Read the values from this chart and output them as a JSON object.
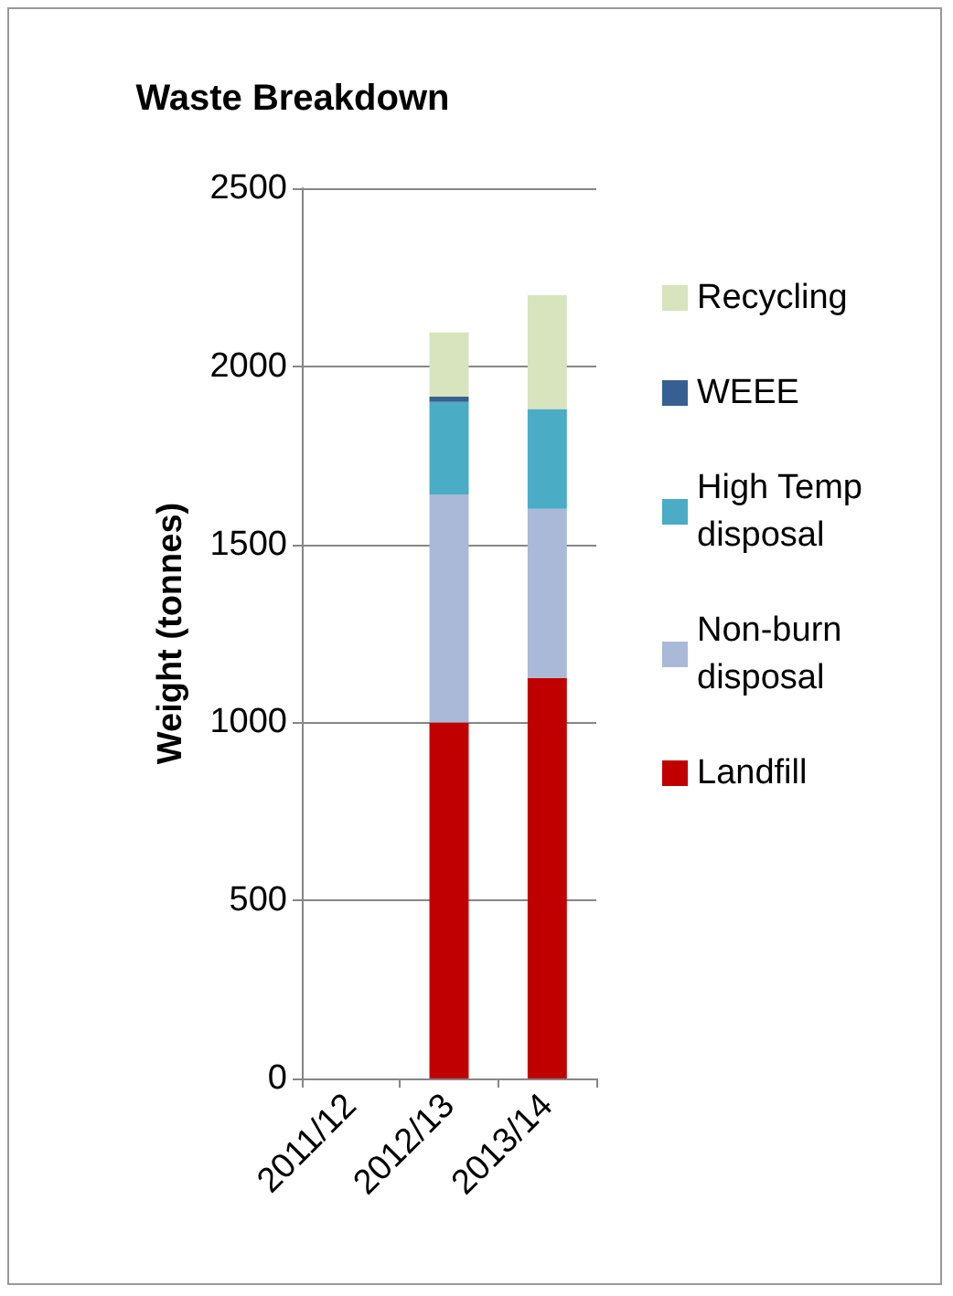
{
  "chart_data": {
    "type": "bar",
    "title": "Waste Breakdown",
    "ylabel": "Weight (tonnes)",
    "categories": [
      "2011/12",
      "2012/13",
      "2013/14"
    ],
    "stacked": true,
    "series": [
      {
        "name": "Landfill",
        "color": "#c00000",
        "values": [
          null,
          1000,
          1125
        ]
      },
      {
        "name": "Non-burn disposal",
        "color": "#aab9d8",
        "values": [
          null,
          640,
          475
        ]
      },
      {
        "name": "High Temp disposal",
        "color": "#4bacc6",
        "values": [
          null,
          260,
          280
        ]
      },
      {
        "name": "WEEE",
        "color": "#376092",
        "values": [
          null,
          15,
          0
        ]
      },
      {
        "name": "Recycling",
        "color": "#d7e4bd",
        "values": [
          null,
          180,
          320
        ]
      }
    ],
    "ylim": [
      0,
      2500
    ],
    "yticks": [
      0,
      500,
      1000,
      1500,
      2000,
      2500
    ],
    "grid": "y",
    "legend": "right"
  }
}
